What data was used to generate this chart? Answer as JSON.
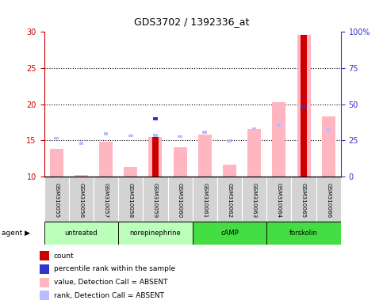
{
  "title": "GDS3702 / 1392336_at",
  "samples": [
    "GSM310055",
    "GSM310056",
    "GSM310057",
    "GSM310058",
    "GSM310059",
    "GSM310060",
    "GSM310061",
    "GSM310062",
    "GSM310063",
    "GSM310064",
    "GSM310065",
    "GSM310066"
  ],
  "value_bars": [
    13.8,
    10.2,
    14.8,
    11.3,
    15.5,
    14.0,
    15.8,
    11.6,
    16.6,
    20.3,
    29.6,
    18.3
  ],
  "rank_markers": [
    15.3,
    14.6,
    15.9,
    15.6,
    15.7,
    15.5,
    16.1,
    14.9,
    16.6,
    17.1,
    19.6,
    16.5
  ],
  "count_bars": [
    0,
    0,
    0,
    0,
    15.5,
    0,
    0,
    0,
    0,
    0,
    29.6,
    0
  ],
  "pct_markers_pct": [
    0,
    0,
    0,
    0,
    40,
    0,
    0,
    0,
    0,
    0,
    48,
    0
  ],
  "ylim_left": [
    10,
    30
  ],
  "ylim_right": [
    0,
    100
  ],
  "yticks_left": [
    10,
    15,
    20,
    25,
    30
  ],
  "yticks_right": [
    0,
    25,
    50,
    75,
    100
  ],
  "ytick_labels_right": [
    "0",
    "25",
    "50",
    "75",
    "100%"
  ],
  "value_color": "#FFB6C1",
  "rank_color": "#BBBBFF",
  "count_color": "#CC0000",
  "percentile_color": "#3333CC",
  "left_axis_color": "#CC0000",
  "right_axis_color": "#3333CC",
  "group_defs": [
    {
      "label": "untreated",
      "start": 0,
      "end": 3,
      "color": "#BBFFBB"
    },
    {
      "label": "norepinephrine",
      "start": 3,
      "end": 6,
      "color": "#BBFFBB"
    },
    {
      "label": "cAMP",
      "start": 6,
      "end": 9,
      "color": "#44DD44"
    },
    {
      "label": "forskolin",
      "start": 9,
      "end": 12,
      "color": "#44DD44"
    }
  ],
  "legend_items": [
    {
      "color": "#CC0000",
      "label": "count"
    },
    {
      "color": "#3333CC",
      "label": "percentile rank within the sample"
    },
    {
      "color": "#FFB6C1",
      "label": "value, Detection Call = ABSENT"
    },
    {
      "color": "#BBBBFF",
      "label": "rank, Detection Call = ABSENT"
    }
  ]
}
